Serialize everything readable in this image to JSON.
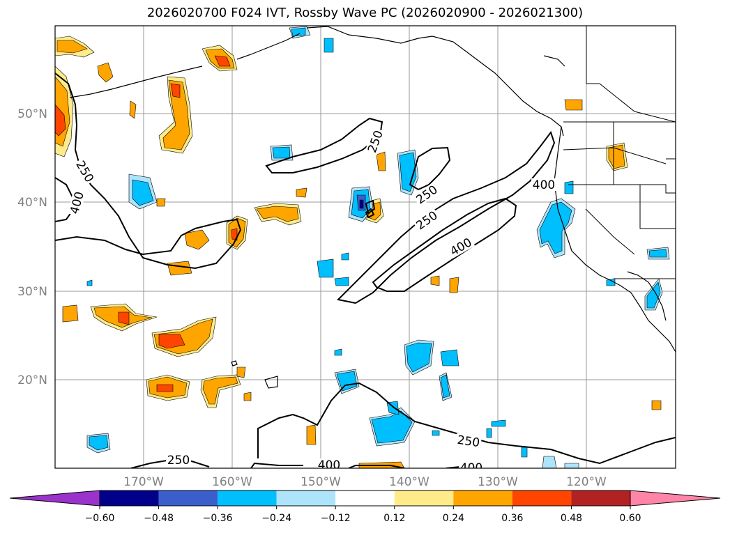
{
  "title": "2026020700 F024 IVT, Rossby Wave PC (2026020900 - 2026021300)",
  "lat_labels": [
    "50°N",
    "40°N",
    "30°N",
    "20°N"
  ],
  "lon_labels": [
    "170°W",
    "160°W",
    "150°W",
    "140°W",
    "130°W",
    "120°W"
  ],
  "colorbar": {
    "levels": [
      "−0.60",
      "−0.48",
      "−0.36",
      "−0.24",
      "−0.12",
      "0.12",
      "0.24",
      "0.36",
      "0.48",
      "0.60"
    ],
    "colors": [
      "#9933cc",
      "#00008b",
      "#3a5fcd",
      "#00bfff",
      "#aee4fb",
      "#ffffff",
      "#ffeb8a",
      "#ffa500",
      "#ff4500",
      "#b22222",
      "#ff85a8"
    ]
  },
  "contour_labels": [
    "250",
    "400",
    "250",
    "250",
    "250",
    "400",
    "400",
    "250",
    "250",
    "400",
    "400"
  ],
  "colors": {
    "contour": "#000000",
    "grid": "#999999",
    "border": "#000000"
  }
}
